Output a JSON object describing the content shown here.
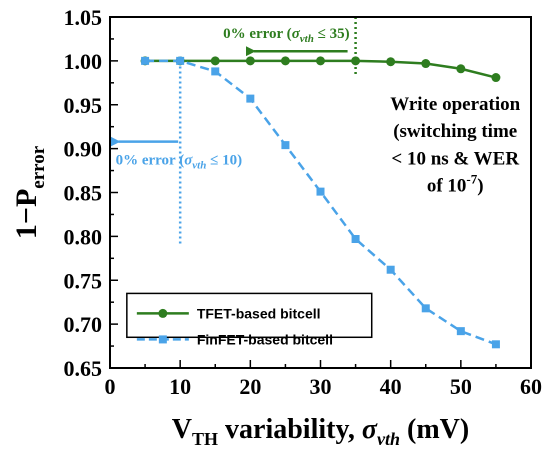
{
  "chart_data": {
    "type": "line",
    "xlabel": {
      "main": "V",
      "sub": "TH",
      "rest": " variability, ",
      "sym": "σ",
      "symsub": "vth",
      "unit": " (mV)"
    },
    "ylabel": {
      "main": "1−P",
      "sub": "error"
    },
    "xlim": [
      0,
      60
    ],
    "ylim": [
      0.65,
      1.05
    ],
    "xticks": [
      "0",
      "10",
      "20",
      "30",
      "40",
      "50",
      "60"
    ],
    "yticks": [
      "0.65",
      "0.70",
      "0.75",
      "0.80",
      "0.85",
      "0.90",
      "0.95",
      "1.00",
      "1.05"
    ],
    "x": [
      5,
      10,
      15,
      20,
      25,
      30,
      35,
      40,
      45,
      50,
      55
    ],
    "series": [
      {
        "name": "TFET-based bitcell",
        "color": "#2e7d1f",
        "style": "solid",
        "marker": "circle",
        "values": [
          1.0,
          1.0,
          1.0,
          1.0,
          1.0,
          1.0,
          1.0,
          0.999,
          0.997,
          0.991,
          0.981
        ]
      },
      {
        "name": "FinFET-based bitcell",
        "color": "#4aa3e8",
        "style": "dashed",
        "marker": "square",
        "values": [
          1.0,
          1.0,
          0.988,
          0.957,
          0.904,
          0.851,
          0.797,
          0.762,
          0.718,
          0.692,
          0.677
        ]
      }
    ],
    "legend_position": "bottom-left",
    "annotations": {
      "tfet": {
        "prefix": "0% error (",
        "sym": "σ",
        "sub": "vth",
        "suffix": " ≤ 35)",
        "x": 35
      },
      "finfet": {
        "prefix": "0% error (",
        "sym": "σ",
        "sub": "vth",
        "suffix": " ≤ 10)",
        "x": 10
      },
      "note_lines": [
        "Write operation",
        "(switching time",
        "< 10 ns & WER",
        "of 10"
      ],
      "note_exp": "-7",
      "note_close": ")"
    }
  }
}
